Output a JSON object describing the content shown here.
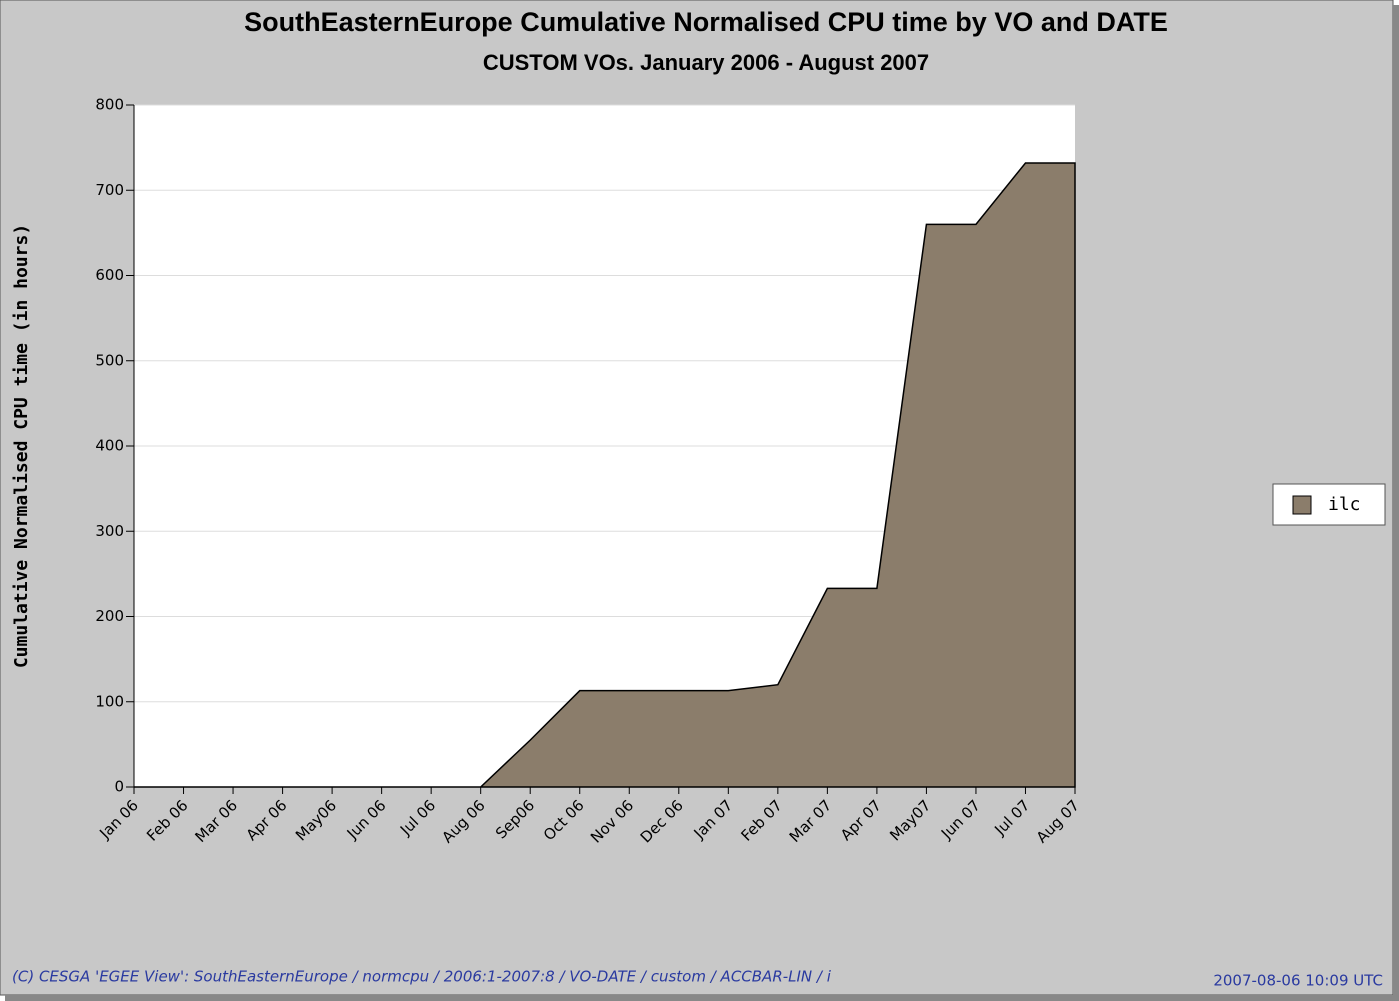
{
  "chart_data": {
    "type": "area",
    "title": "SouthEasternEurope Cumulative Normalised CPU time by VO and DATE",
    "subtitle": "CUSTOM VOs. January 2006 - August 2007",
    "y_label": "Cumulative Normalised CPU time (in hours)",
    "categories": [
      "Jan 06",
      "Feb 06",
      "Mar 06",
      "Apr 06",
      "May06",
      "Jun 06",
      "Jul 06",
      "Aug 06",
      "Sep06",
      "Oct 06",
      "Nov 06",
      "Dec 06",
      "Jan 07",
      "Feb 07",
      "Mar 07",
      "Apr 07",
      "May07",
      "Jun 07",
      "Jul 07",
      "Aug 07"
    ],
    "series": [
      {
        "name": "ilc",
        "color": "#8b7d6b",
        "values": [
          0,
          0,
          0,
          0,
          0,
          0,
          0,
          0,
          55,
          113,
          113,
          113,
          113,
          120,
          233,
          233,
          660,
          660,
          732,
          732
        ]
      }
    ],
    "ylim": [
      0,
      800
    ],
    "yticks": [
      0,
      100,
      200,
      300,
      400,
      500,
      600,
      700,
      800
    ],
    "grid": true,
    "legend": "right",
    "footer_left": "(C) CESGA 'EGEE View': SouthEasternEurope / normcpu / 2006:1-2007:8 / VO-DATE / custom / ACCBAR-LIN / i",
    "footer_right": "2007-08-06 10:09 UTC"
  }
}
